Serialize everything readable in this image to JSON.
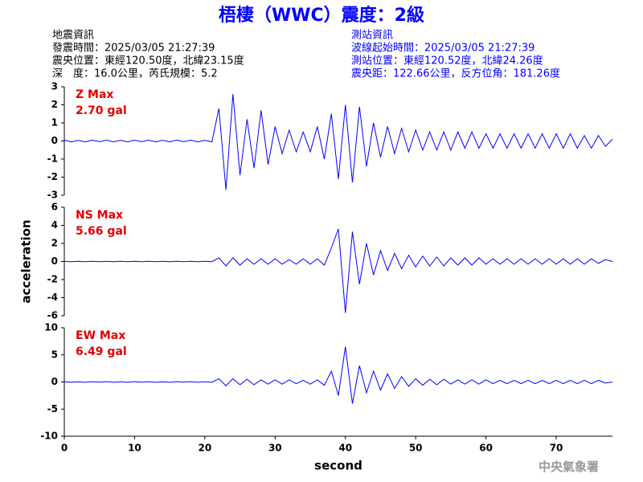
{
  "header": {
    "title": "梧棲（WWC）震度：2級",
    "left_lines": [
      "地震資訊",
      "發震時間：2025/03/05 21:27:39",
      "震央位置：東經120.50度，北緯23.15度",
      "深　度：16.0公里，芮氏規模：5.2"
    ],
    "right_lines": [
      "測站資訊",
      "波線起始時間：2025/03/05 21:27:39",
      "測站位置：東經120.52度，北緯24.26度",
      "震央距：122.66公里，反方位角：181.26度"
    ]
  },
  "footer": "中央氣象署",
  "chart_data": [
    {
      "type": "line",
      "annotations": [
        "Z Max",
        "2.70 gal"
      ],
      "x": [
        0,
        1,
        2,
        3,
        4,
        5,
        6,
        7,
        8,
        9,
        10,
        11,
        12,
        13,
        14,
        15,
        16,
        17,
        18,
        19,
        20,
        21,
        22,
        23,
        24,
        25,
        26,
        27,
        28,
        29,
        30,
        31,
        32,
        33,
        34,
        35,
        36,
        37,
        38,
        39,
        40,
        41,
        42,
        43,
        44,
        45,
        46,
        47,
        48,
        49,
        50,
        51,
        52,
        53,
        54,
        55,
        56,
        57,
        58,
        59,
        60,
        61,
        62,
        63,
        64,
        65,
        66,
        67,
        68,
        69,
        70,
        71,
        72,
        73,
        74,
        75,
        76,
        77,
        78
      ],
      "series": [
        {
          "name": "Z",
          "color": "#0000ff",
          "values": [
            0.05,
            -0.05,
            0.04,
            -0.05,
            0.05,
            -0.04,
            0.05,
            -0.05,
            0.04,
            -0.05,
            0.05,
            -0.04,
            0.05,
            -0.05,
            0.04,
            -0.05,
            0.05,
            -0.04,
            0.05,
            -0.05,
            0.04,
            -0.05,
            1.8,
            -2.7,
            2.6,
            -1.9,
            1.2,
            -1.5,
            1.7,
            -1.3,
            0.8,
            -0.7,
            0.6,
            -0.6,
            0.5,
            -0.6,
            0.8,
            -1.0,
            1.5,
            -2.1,
            2.0,
            -2.3,
            1.9,
            -1.4,
            1.0,
            -0.9,
            0.8,
            -0.7,
            0.7,
            -0.6,
            0.6,
            -0.5,
            0.5,
            -0.5,
            0.5,
            -0.5,
            0.5,
            -0.4,
            0.5,
            -0.4,
            0.4,
            -0.4,
            0.4,
            -0.4,
            0.4,
            -0.4,
            0.4,
            -0.4,
            0.4,
            -0.4,
            0.4,
            -0.4,
            0.4,
            -0.4,
            0.3,
            -0.4,
            0.3,
            -0.3,
            0.1
          ]
        }
      ],
      "xlim": [
        0,
        78
      ],
      "ylim": [
        -3,
        3
      ],
      "yticks": [
        -3,
        -2,
        -1,
        0,
        1,
        2,
        3
      ]
    },
    {
      "type": "line",
      "annotations": [
        "NS Max",
        "5.66 gal"
      ],
      "ylabel": "acceleration",
      "x": [
        0,
        1,
        2,
        3,
        4,
        5,
        6,
        7,
        8,
        9,
        10,
        11,
        12,
        13,
        14,
        15,
        16,
        17,
        18,
        19,
        20,
        21,
        22,
        23,
        24,
        25,
        26,
        27,
        28,
        29,
        30,
        31,
        32,
        33,
        34,
        35,
        36,
        37,
        38,
        39,
        40,
        41,
        42,
        43,
        44,
        45,
        46,
        47,
        48,
        49,
        50,
        51,
        52,
        53,
        54,
        55,
        56,
        57,
        58,
        59,
        60,
        61,
        62,
        63,
        64,
        65,
        66,
        67,
        68,
        69,
        70,
        71,
        72,
        73,
        74,
        75,
        76,
        77,
        78
      ],
      "series": [
        {
          "name": "NS",
          "color": "#0000ff",
          "values": [
            0.02,
            -0.02,
            0.02,
            -0.02,
            0.02,
            -0.02,
            0.02,
            -0.02,
            0.02,
            -0.02,
            0.02,
            -0.02,
            0.02,
            -0.02,
            0.02,
            -0.02,
            0.02,
            -0.02,
            0.02,
            -0.02,
            0.02,
            -0.02,
            0.4,
            -0.5,
            0.4,
            -0.4,
            0.3,
            -0.3,
            0.3,
            -0.3,
            0.3,
            -0.3,
            0.2,
            -0.3,
            0.3,
            -0.3,
            0.3,
            -0.4,
            1.5,
            3.6,
            -5.7,
            3.3,
            -2.5,
            2.0,
            -1.5,
            1.2,
            -1.0,
            0.9,
            -0.8,
            0.7,
            -0.6,
            0.6,
            -0.5,
            0.5,
            -0.5,
            0.4,
            -0.4,
            0.4,
            -0.4,
            0.4,
            -0.3,
            0.3,
            -0.3,
            0.3,
            -0.3,
            0.3,
            -0.3,
            0.3,
            -0.3,
            0.3,
            -0.3,
            0.3,
            -0.3,
            0.3,
            -0.3,
            0.3,
            -0.2,
            0.2,
            0
          ]
        }
      ],
      "xlim": [
        0,
        78
      ],
      "ylim": [
        -6,
        6
      ],
      "yticks": [
        -6,
        -4,
        -2,
        0,
        2,
        4,
        6
      ]
    },
    {
      "type": "line",
      "annotations": [
        "EW Max",
        "6.49 gal"
      ],
      "xlabel": "second",
      "x": [
        0,
        1,
        2,
        3,
        4,
        5,
        6,
        7,
        8,
        9,
        10,
        11,
        12,
        13,
        14,
        15,
        16,
        17,
        18,
        19,
        20,
        21,
        22,
        23,
        24,
        25,
        26,
        27,
        28,
        29,
        30,
        31,
        32,
        33,
        34,
        35,
        36,
        37,
        38,
        39,
        40,
        41,
        42,
        43,
        44,
        45,
        46,
        47,
        48,
        49,
        50,
        51,
        52,
        53,
        54,
        55,
        56,
        57,
        58,
        59,
        60,
        61,
        62,
        63,
        64,
        65,
        66,
        67,
        68,
        69,
        70,
        71,
        72,
        73,
        74,
        75,
        76,
        77,
        78
      ],
      "series": [
        {
          "name": "EW",
          "color": "#0000ff",
          "values": [
            0.05,
            -0.05,
            0.04,
            -0.05,
            0.05,
            -0.04,
            0.05,
            -0.05,
            0.04,
            -0.05,
            0.05,
            -0.04,
            0.05,
            -0.05,
            0.04,
            -0.05,
            0.05,
            -0.04,
            0.05,
            -0.05,
            0.04,
            -0.05,
            0.6,
            -0.7,
            0.6,
            -0.5,
            0.5,
            -0.5,
            0.4,
            -0.4,
            0.4,
            -0.4,
            0.4,
            -0.3,
            0.3,
            -0.4,
            0.4,
            -0.6,
            2.0,
            -2.5,
            6.5,
            -4.0,
            3.0,
            -2.0,
            2.0,
            -1.5,
            1.5,
            -1.2,
            1.0,
            -0.8,
            0.6,
            -0.6,
            0.5,
            -0.5,
            0.5,
            -0.4,
            0.4,
            -0.4,
            0.4,
            -0.4,
            0.4,
            -0.3,
            0.3,
            -0.3,
            0.3,
            -0.3,
            0.3,
            -0.3,
            0.3,
            -0.3,
            0.3,
            -0.3,
            0.3,
            -0.3,
            0.3,
            -0.3,
            0.3,
            -0.2,
            0
          ]
        }
      ],
      "xlim": [
        0,
        78
      ],
      "ylim": [
        -10,
        10
      ],
      "yticks": [
        -10,
        -5,
        0,
        5,
        10
      ],
      "xticks": [
        0,
        10,
        20,
        30,
        40,
        50,
        60,
        70
      ]
    }
  ]
}
